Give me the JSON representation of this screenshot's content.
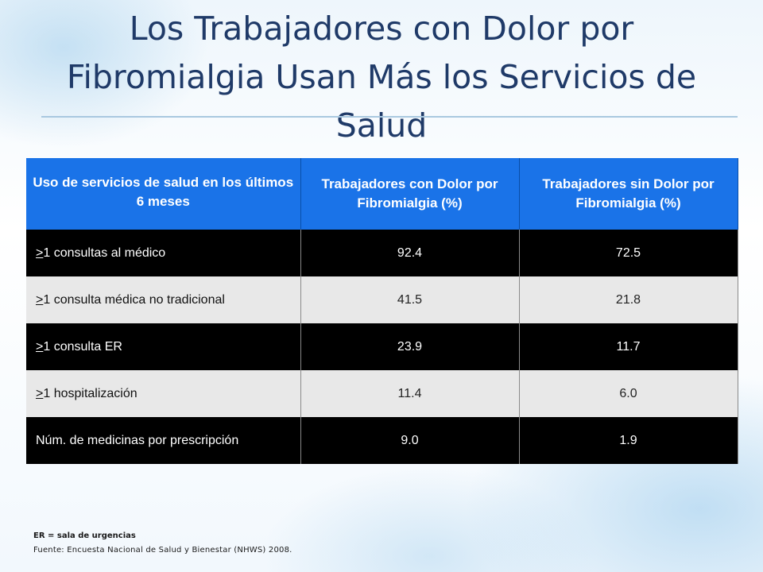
{
  "slide": {
    "title": "Los Trabajadores con  Dolor por Fibromialgia Usan Más los Servicios de Salud"
  },
  "table": {
    "headers": [
      "Uso de servicios de salud en los últimos 6 meses",
      "Trabajadores con Dolor por Fibromialgia (%)",
      "Trabajadores sin Dolor por Fibromialgia (%)"
    ],
    "rows": [
      {
        "prefix": ">",
        "label": "1 consultas al médico",
        "con": "92.4",
        "sin": "72.5"
      },
      {
        "prefix": ">",
        "label": "1 consulta médica no tradicional",
        "con": "41.5",
        "sin": "21.8"
      },
      {
        "prefix": ">",
        "label": "1 consulta ER",
        "con": "23.9",
        "sin": "11.7"
      },
      {
        "prefix": ">",
        "label": "1 hospitalización",
        "con": "11.4",
        "sin": "6.0"
      },
      {
        "prefix": "",
        "label": "Núm. de medicinas por prescripción",
        "con": "9.0",
        "sin": "1.9"
      }
    ]
  },
  "footnotes": {
    "abbrev": "ER = sala de urgencias",
    "source": "Fuente:  Encuesta Nacional de Salud y Bienestar  (NHWS) 2008."
  },
  "colors": {
    "header_bg": "#1a73e8",
    "title": "#1f3a68",
    "dark_row": "#000000",
    "light_row": "#e8e8e8"
  }
}
